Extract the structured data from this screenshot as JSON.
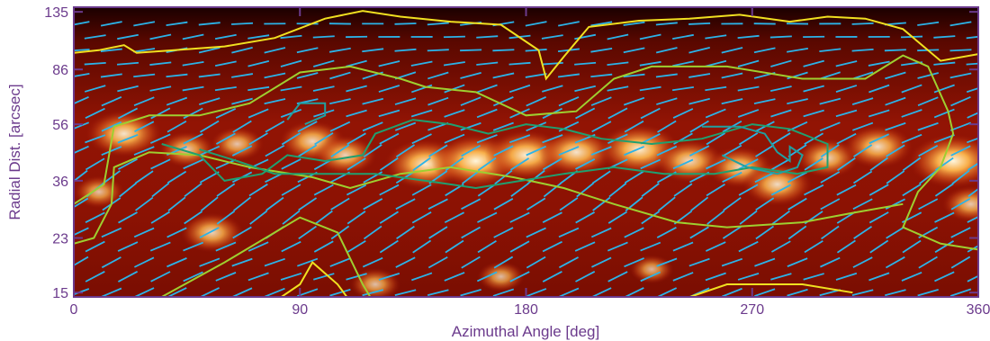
{
  "chart_data": {
    "type": "heatmap",
    "title": "",
    "xlabel": "Azimuthal Angle [deg]",
    "ylabel": "Radial Dist. [arcsec]",
    "xlim": [
      0,
      360
    ],
    "y_scale": "log",
    "ylim": [
      14.5,
      140
    ],
    "x_ticks": [
      "0",
      "90",
      "180",
      "270",
      "360"
    ],
    "x_tick_values": [
      0,
      90,
      180,
      270,
      360
    ],
    "y_ticks": [
      "15",
      "23",
      "36",
      "56",
      "86",
      "135"
    ],
    "y_tick_values": [
      15,
      23,
      36,
      56,
      86,
      135
    ],
    "grid": false,
    "colormap": "heat (dark red → orange → white)",
    "layers": [
      "intensity image",
      "polarization vectors",
      "contours"
    ],
    "vector_color": "#2bb3e8",
    "axis_color": "#6b3a8c",
    "emission_blobs": [
      {
        "az": 20,
        "r": 52,
        "amp": 0.9
      },
      {
        "az": 45,
        "r": 46,
        "amp": 0.6
      },
      {
        "az": 65,
        "r": 48,
        "amp": 0.55
      },
      {
        "az": 95,
        "r": 49,
        "amp": 0.75
      },
      {
        "az": 108,
        "r": 44,
        "amp": 0.7
      },
      {
        "az": 140,
        "r": 41,
        "amp": 1.0
      },
      {
        "az": 160,
        "r": 42,
        "amp": 1.1
      },
      {
        "az": 180,
        "r": 44,
        "amp": 1.0
      },
      {
        "az": 200,
        "r": 45,
        "amp": 0.9
      },
      {
        "az": 225,
        "r": 46,
        "amp": 1.0
      },
      {
        "az": 245,
        "r": 42,
        "amp": 0.8
      },
      {
        "az": 265,
        "r": 40,
        "amp": 0.75
      },
      {
        "az": 280,
        "r": 35,
        "amp": 0.8
      },
      {
        "az": 300,
        "r": 43,
        "amp": 0.7
      },
      {
        "az": 320,
        "r": 47,
        "amp": 0.8
      },
      {
        "az": 350,
        "r": 42,
        "amp": 1.1
      },
      {
        "az": 55,
        "r": 24,
        "amp": 0.7
      },
      {
        "az": 10,
        "r": 33,
        "amp": 0.5
      },
      {
        "az": 357,
        "r": 30,
        "amp": 0.6
      },
      {
        "az": 120,
        "r": 16,
        "amp": 0.5
      },
      {
        "az": 170,
        "r": 17,
        "amp": 0.45
      },
      {
        "az": 230,
        "r": 18,
        "amp": 0.4
      }
    ],
    "vector_field": {
      "az_step": 13,
      "r_rows": [
        15,
        17,
        19,
        21.5,
        24,
        27,
        30,
        33.5,
        37,
        41,
        45.5,
        50,
        55,
        61,
        67,
        74,
        82,
        90,
        100,
        111,
        123
      ],
      "angle_deg_by_row": [
        20,
        22,
        25,
        28,
        30,
        32,
        33,
        33,
        32,
        30,
        28,
        26,
        25,
        22,
        18,
        14,
        12,
        10,
        8,
        6,
        5
      ]
    },
    "contours": [
      {
        "color": "#f0e020",
        "level": "outer top",
        "points": [
          [
            0,
            98
          ],
          [
            10,
            100
          ],
          [
            20,
            104
          ],
          [
            25,
            98
          ],
          [
            40,
            100
          ],
          [
            60,
            103
          ],
          [
            80,
            110
          ],
          [
            100,
            128
          ],
          [
            115,
            136
          ],
          [
            130,
            130
          ],
          [
            150,
            125
          ],
          [
            170,
            122
          ],
          [
            185,
            100
          ],
          [
            188,
            80
          ],
          [
            195,
            95
          ],
          [
            205,
            120
          ],
          [
            225,
            126
          ],
          [
            245,
            128
          ],
          [
            265,
            132
          ],
          [
            285,
            125
          ],
          [
            300,
            130
          ],
          [
            315,
            128
          ],
          [
            330,
            118
          ],
          [
            345,
            92
          ],
          [
            360,
            97
          ]
        ]
      },
      {
        "color": "#9ecf30",
        "level": "mid top",
        "points": [
          [
            0,
            30
          ],
          [
            12,
            35
          ],
          [
            16,
            55
          ],
          [
            30,
            60
          ],
          [
            50,
            60
          ],
          [
            70,
            66
          ],
          [
            90,
            84
          ],
          [
            110,
            88
          ],
          [
            130,
            80
          ],
          [
            140,
            75
          ],
          [
            160,
            72
          ],
          [
            180,
            60
          ],
          [
            200,
            62
          ],
          [
            215,
            80
          ],
          [
            230,
            88
          ],
          [
            260,
            88
          ],
          [
            290,
            80
          ],
          [
            315,
            80
          ],
          [
            330,
            96
          ],
          [
            340,
            88
          ],
          [
            348,
            62
          ],
          [
            350,
            52
          ],
          [
            345,
            40
          ],
          [
            336,
            33
          ],
          [
            330,
            25
          ],
          [
            345,
            22
          ],
          [
            360,
            21
          ]
        ]
      },
      {
        "color": "#9ecf30",
        "level": "mid lower",
        "points": [
          [
            0,
            22
          ],
          [
            8,
            23
          ],
          [
            15,
            30
          ],
          [
            16,
            40
          ],
          [
            30,
            45
          ],
          [
            50,
            44
          ],
          [
            70,
            40
          ],
          [
            95,
            37
          ],
          [
            110,
            34
          ],
          [
            130,
            38
          ],
          [
            150,
            40
          ],
          [
            175,
            37
          ],
          [
            195,
            34
          ],
          [
            215,
            30
          ],
          [
            240,
            26
          ],
          [
            260,
            25
          ],
          [
            290,
            26
          ],
          [
            310,
            28
          ],
          [
            330,
            30
          ]
        ]
      },
      {
        "color": "#20a070",
        "level": "inner",
        "points": [
          [
            35,
            48
          ],
          [
            50,
            44
          ],
          [
            60,
            36
          ],
          [
            75,
            38
          ],
          [
            85,
            44
          ],
          [
            100,
            42
          ],
          [
            115,
            44
          ],
          [
            120,
            52
          ],
          [
            135,
            58
          ],
          [
            150,
            56
          ],
          [
            165,
            52
          ],
          [
            180,
            56
          ],
          [
            195,
            54
          ],
          [
            210,
            50
          ],
          [
            230,
            48
          ],
          [
            250,
            50
          ],
          [
            270,
            56
          ],
          [
            285,
            54
          ],
          [
            300,
            48
          ],
          [
            300,
            40
          ],
          [
            288,
            38
          ],
          [
            270,
            40
          ],
          [
            255,
            38
          ],
          [
            235,
            38
          ],
          [
            215,
            40
          ],
          [
            195,
            38
          ],
          [
            178,
            36
          ],
          [
            160,
            34
          ],
          [
            140,
            36
          ],
          [
            120,
            38
          ],
          [
            100,
            38
          ],
          [
            80,
            38
          ],
          [
            65,
            42
          ],
          [
            50,
            46
          ]
        ]
      },
      {
        "color": "#20a0a0",
        "level": "inner right",
        "points": [
          [
            250,
            55
          ],
          [
            265,
            55
          ],
          [
            275,
            52
          ],
          [
            280,
            45
          ],
          [
            285,
            42
          ],
          [
            285,
            47
          ],
          [
            290,
            44
          ],
          [
            288,
            40
          ],
          [
            280,
            38
          ],
          [
            268,
            40
          ],
          [
            258,
            44
          ]
        ]
      },
      {
        "color": "#20a0a0",
        "level": "small loop",
        "points": [
          [
            85,
            58
          ],
          [
            90,
            66
          ],
          [
            100,
            66
          ],
          [
            100,
            60
          ],
          [
            92,
            56
          ]
        ]
      },
      {
        "color": "#f0e020",
        "level": "bottom",
        "points": [
          [
            80,
            14
          ],
          [
            90,
            16
          ],
          [
            95,
            19
          ],
          [
            105,
            16
          ],
          [
            110,
            14
          ]
        ]
      },
      {
        "color": "#f0e020",
        "level": "bottom right",
        "points": [
          [
            240,
            14
          ],
          [
            260,
            16
          ],
          [
            290,
            16
          ],
          [
            310,
            15
          ]
        ]
      },
      {
        "color": "#9ecf30",
        "level": "bottom green",
        "points": [
          [
            35,
            14.5
          ],
          [
            60,
            19
          ],
          [
            90,
            27
          ],
          [
            105,
            24
          ],
          [
            115,
            16
          ],
          [
            118,
            14.5
          ]
        ]
      }
    ]
  }
}
